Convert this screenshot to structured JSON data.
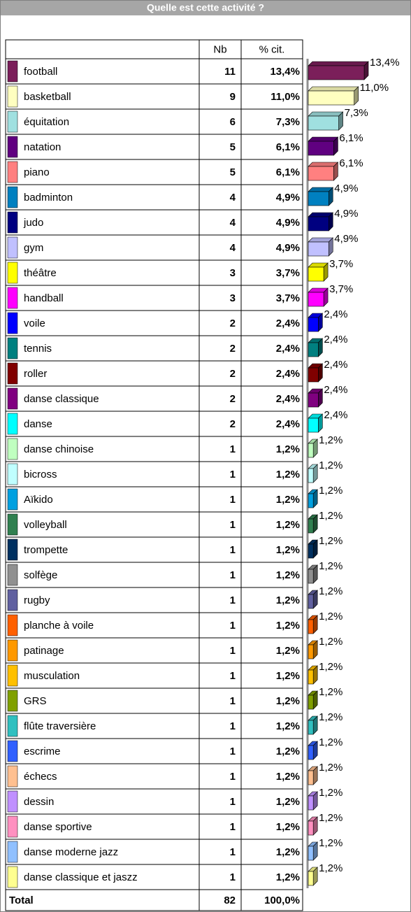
{
  "chart_data": {
    "type": "bar",
    "title": "Quelle est cette activité ?",
    "headers": [
      "Nb",
      "% cit."
    ],
    "categories": [
      "football",
      "basketball",
      "équitation",
      "natation",
      "piano",
      "badminton",
      "judo",
      "gym",
      "théâtre",
      "handball",
      "voile",
      "tennis",
      "roller",
      "danse classique",
      "danse",
      "danse chinoise",
      "bicross",
      "Aïkido",
      "volleyball",
      "trompette",
      "solfège",
      "rugby",
      "planche à voile",
      "patinage",
      "musculation",
      "GRS",
      "flûte traversière",
      "escrime",
      "échecs",
      "dessin",
      "danse sportive",
      "danse moderne jazz",
      "danse classique et jaszz"
    ],
    "counts": [
      11,
      9,
      6,
      5,
      5,
      4,
      4,
      4,
      3,
      3,
      2,
      2,
      2,
      2,
      2,
      1,
      1,
      1,
      1,
      1,
      1,
      1,
      1,
      1,
      1,
      1,
      1,
      1,
      1,
      1,
      1,
      1,
      1
    ],
    "values": [
      13.4,
      11.0,
      7.3,
      6.1,
      6.1,
      4.9,
      4.9,
      4.9,
      3.7,
      3.7,
      2.4,
      2.4,
      2.4,
      2.4,
      2.4,
      1.2,
      1.2,
      1.2,
      1.2,
      1.2,
      1.2,
      1.2,
      1.2,
      1.2,
      1.2,
      1.2,
      1.2,
      1.2,
      1.2,
      1.2,
      1.2,
      1.2,
      1.2
    ],
    "value_labels": [
      "13,4%",
      "11,0%",
      "7,3%",
      "6,1%",
      "6,1%",
      "4,9%",
      "4,9%",
      "4,9%",
      "3,7%",
      "3,7%",
      "2,4%",
      "2,4%",
      "2,4%",
      "2,4%",
      "2,4%",
      "1,2%",
      "1,2%",
      "1,2%",
      "1,2%",
      "1,2%",
      "1,2%",
      "1,2%",
      "1,2%",
      "1,2%",
      "1,2%",
      "1,2%",
      "1,2%",
      "1,2%",
      "1,2%",
      "1,2%",
      "1,2%",
      "1,2%",
      "1,2%"
    ],
    "colors": [
      "#7b1f5a",
      "#ffffc0",
      "#a0e0e0",
      "#600080",
      "#ff8080",
      "#0080c0",
      "#000080",
      "#c0c0ff",
      "#ffff00",
      "#ff00ff",
      "#0000ff",
      "#008080",
      "#800000",
      "#800080",
      "#00ffff",
      "#c0ffc0",
      "#c0ffff",
      "#00a0e0",
      "#308050",
      "#003060",
      "#909090",
      "#6060a0",
      "#ff6000",
      "#ff9900",
      "#ffc000",
      "#80a000",
      "#30c0c0",
      "#3060ff",
      "#ffc090",
      "#c090ff",
      "#ff90c0",
      "#90c0ff",
      "#ffff90"
    ],
    "total_label": "Total",
    "total_count": 82,
    "total_value_label": "100,0%"
  }
}
